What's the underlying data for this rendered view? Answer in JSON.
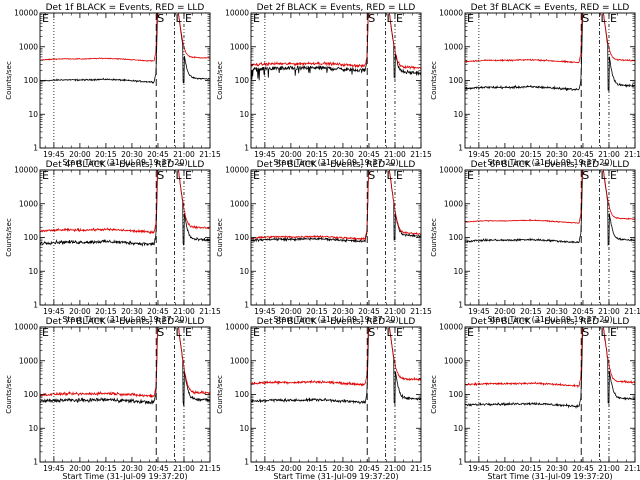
{
  "figure": {
    "y_scale": "log",
    "ylim": [
      1,
      10000
    ],
    "y_ticks": [
      1,
      10,
      100,
      1000,
      10000
    ],
    "y_tick_labels": [
      "1",
      "10",
      "100",
      "1000",
      "10000"
    ],
    "x_tick_labels": [
      "19:45",
      "20:00",
      "20:15",
      "20:30",
      "20:45",
      "21:00",
      "21:15"
    ],
    "xlim_minutes_from_start": [
      0,
      98
    ],
    "x_tick_minutes_from_start": [
      8,
      23,
      38,
      53,
      68,
      83,
      98
    ],
    "xlabel": "Start Time (31-Jul-09 19:37:20)",
    "ylabel": "Counts/sec",
    "series_colors": {
      "events": "#000000",
      "lld": "#e00000"
    },
    "marker_lines_minutes": {
      "dotted": 8,
      "S": 67,
      "L": 77.5,
      "E": 83
    },
    "marker_letters": {
      "start": "E",
      "S": "S",
      "L": "L",
      "end": "E"
    }
  },
  "chart_data": [
    {
      "type": "line",
      "title": "Det 1f BLACK = Events, RED = LLD",
      "events_level": 100,
      "lld_level": 420,
      "events_after_level": 120,
      "lld_after_level": 500,
      "events_noise": 0.03,
      "lld_noise": 0.02,
      "dips": false
    },
    {
      "type": "line",
      "title": "Det 2f BLACK = Events, RED = LLD",
      "events_level": 220,
      "lld_level": 300,
      "events_after_level": 180,
      "lld_after_level": 260,
      "events_noise": 0.09,
      "lld_noise": 0.06,
      "dips": true
    },
    {
      "type": "line",
      "title": "Det 3f BLACK = Events, RED = LLD",
      "events_level": 60,
      "lld_level": 380,
      "events_after_level": 75,
      "lld_after_level": 420,
      "events_noise": 0.05,
      "lld_noise": 0.03,
      "dips": false
    },
    {
      "type": "line",
      "title": "Det 4f BLACK = Events, RED = LLD",
      "events_level": 70,
      "lld_level": 160,
      "events_after_level": 90,
      "lld_after_level": 210,
      "events_noise": 0.07,
      "lld_noise": 0.05,
      "dips": false
    },
    {
      "type": "line",
      "title": "Det 5f BLACK = Events, RED = LLD",
      "events_level": 85,
      "lld_level": 100,
      "events_after_level": 120,
      "lld_after_level": 140,
      "events_noise": 0.05,
      "lld_noise": 0.04,
      "dips": false
    },
    {
      "type": "line",
      "title": "Det 6f BLACK = Events, RED = LLD",
      "events_level": 80,
      "lld_level": 300,
      "events_after_level": 90,
      "lld_after_level": 380,
      "events_noise": 0.04,
      "lld_noise": 0.02,
      "dips": false
    },
    {
      "type": "line",
      "title": "Det 7f BLACK = Events, RED = LLD",
      "events_level": 65,
      "lld_level": 100,
      "events_after_level": 75,
      "lld_after_level": 120,
      "events_noise": 0.08,
      "lld_noise": 0.06,
      "dips": false
    },
    {
      "type": "line",
      "title": "Det 8f BLACK = Events, RED = LLD",
      "events_level": 65,
      "lld_level": 220,
      "events_after_level": 80,
      "lld_after_level": 300,
      "events_noise": 0.06,
      "lld_noise": 0.05,
      "dips": false
    },
    {
      "type": "line",
      "title": "Det 9f BLACK = Events, RED = LLD",
      "events_level": 50,
      "lld_level": 200,
      "events_after_level": 80,
      "lld_after_level": 250,
      "events_noise": 0.05,
      "lld_noise": 0.04,
      "dips": false
    }
  ]
}
